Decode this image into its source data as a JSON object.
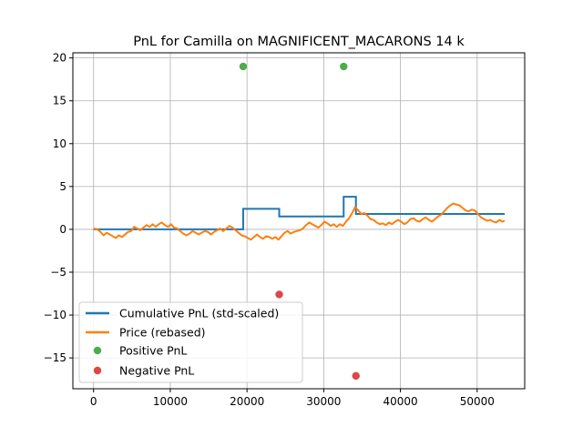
{
  "chart_data": {
    "type": "line",
    "title": "PnL for Camilla on MAGNIFICENT_MACARONS 14 k",
    "xlabel": "",
    "ylabel": "",
    "xlim": [
      -2700,
      56200
    ],
    "ylim": [
      -18.6,
      20.6
    ],
    "x_ticks": [
      0,
      10000,
      20000,
      30000,
      40000,
      50000
    ],
    "x_tick_labels": [
      "0",
      "10000",
      "20000",
      "30000",
      "40000",
      "50000"
    ],
    "y_ticks": [
      20,
      15,
      10,
      5,
      0,
      -5,
      -10,
      -15
    ],
    "y_tick_labels": [
      "20",
      "15",
      "10",
      "5",
      "0",
      "−5",
      "−10",
      "−15"
    ],
    "grid": true,
    "legend_position": "lower-left",
    "colors": {
      "cumulative": "#1f77b4",
      "price": "#ff7f0e",
      "positive": "#2ca02c",
      "negative": "#d62728",
      "grid": "#b0b0b0",
      "axes": "#000000"
    },
    "series": [
      {
        "name": "Cumulative PnL (std-scaled)",
        "kind": "step",
        "points": [
          [
            0,
            0
          ],
          [
            19500,
            0
          ],
          [
            19500,
            2.4
          ],
          [
            24200,
            2.4
          ],
          [
            24200,
            1.5
          ],
          [
            32600,
            1.5
          ],
          [
            32600,
            3.8
          ],
          [
            34200,
            3.8
          ],
          [
            34200,
            1.8
          ],
          [
            53600,
            1.8
          ]
        ]
      },
      {
        "name": "Price (rebased)",
        "kind": "line",
        "points": [
          [
            0,
            0.1
          ],
          [
            500,
            0
          ],
          [
            900,
            -0.3
          ],
          [
            1300,
            -0.7
          ],
          [
            1700,
            -0.4
          ],
          [
            2100,
            -0.6
          ],
          [
            2500,
            -0.8
          ],
          [
            2900,
            -1
          ],
          [
            3300,
            -0.7
          ],
          [
            3700,
            -0.9
          ],
          [
            4100,
            -0.6
          ],
          [
            4500,
            -0.3
          ],
          [
            4900,
            -0.2
          ],
          [
            5300,
            0.3
          ],
          [
            5700,
            0.1
          ],
          [
            6100,
            -0.1
          ],
          [
            6500,
            0.2
          ],
          [
            6900,
            0.5
          ],
          [
            7300,
            0.3
          ],
          [
            7700,
            0.6
          ],
          [
            8100,
            0.3
          ],
          [
            8500,
            0.6
          ],
          [
            8900,
            0.8
          ],
          [
            9300,
            0.5
          ],
          [
            9700,
            0.3
          ],
          [
            10100,
            0.6
          ],
          [
            10500,
            0.2
          ],
          [
            10900,
            0.1
          ],
          [
            11300,
            -0.2
          ],
          [
            11700,
            -0.5
          ],
          [
            12100,
            -0.7
          ],
          [
            12500,
            -0.5
          ],
          [
            12900,
            -0.2
          ],
          [
            13300,
            -0.4
          ],
          [
            13700,
            -0.6
          ],
          [
            14100,
            -0.4
          ],
          [
            14500,
            -0.2
          ],
          [
            14900,
            -0.3
          ],
          [
            15300,
            -0.6
          ],
          [
            15700,
            -0.3
          ],
          [
            16100,
            -0.1
          ],
          [
            16500,
            0.1
          ],
          [
            16900,
            -0.2
          ],
          [
            17300,
            0.1
          ],
          [
            17700,
            0.4
          ],
          [
            18100,
            0.2
          ],
          [
            18500,
            -0.1
          ],
          [
            18900,
            -0.4
          ],
          [
            19300,
            -0.7
          ],
          [
            19700,
            -0.8
          ],
          [
            20100,
            -1
          ],
          [
            20500,
            -1.2
          ],
          [
            20900,
            -0.9
          ],
          [
            21300,
            -0.6
          ],
          [
            21700,
            -0.9
          ],
          [
            22100,
            -1.1
          ],
          [
            22500,
            -0.8
          ],
          [
            22900,
            -0.9
          ],
          [
            23300,
            -1.1
          ],
          [
            23700,
            -0.9
          ],
          [
            24100,
            -1.2
          ],
          [
            24500,
            -0.8
          ],
          [
            24900,
            -0.4
          ],
          [
            25300,
            -0.2
          ],
          [
            25700,
            -0.5
          ],
          [
            26100,
            -0.3
          ],
          [
            26500,
            -0.2
          ],
          [
            26900,
            -0.1
          ],
          [
            27300,
            0.1
          ],
          [
            27700,
            0.5
          ],
          [
            28100,
            0.8
          ],
          [
            28500,
            0.6
          ],
          [
            28900,
            0.4
          ],
          [
            29300,
            0.2
          ],
          [
            29700,
            0.5
          ],
          [
            30100,
            0.9
          ],
          [
            30500,
            0.7
          ],
          [
            30900,
            0.4
          ],
          [
            31300,
            0.6
          ],
          [
            31700,
            0.3
          ],
          [
            32100,
            0.6
          ],
          [
            32500,
            0.4
          ],
          [
            32900,
            0.9
          ],
          [
            33300,
            1.3
          ],
          [
            33700,
            1.9
          ],
          [
            34100,
            2.6
          ],
          [
            34500,
            2.2
          ],
          [
            34900,
            1.8
          ],
          [
            35300,
            1.9
          ],
          [
            35700,
            1.6
          ],
          [
            36100,
            1.2
          ],
          [
            36500,
            1.1
          ],
          [
            36900,
            0.8
          ],
          [
            37300,
            0.6
          ],
          [
            37700,
            0.7
          ],
          [
            38100,
            0.5
          ],
          [
            38500,
            0.8
          ],
          [
            38900,
            0.6
          ],
          [
            39300,
            0.9
          ],
          [
            39700,
            1.1
          ],
          [
            40100,
            0.9
          ],
          [
            40500,
            0.6
          ],
          [
            40900,
            0.8
          ],
          [
            41300,
            1.2
          ],
          [
            41700,
            1.3
          ],
          [
            42100,
            1
          ],
          [
            42500,
            0.9
          ],
          [
            42900,
            1.2
          ],
          [
            43300,
            1.4
          ],
          [
            43700,
            1.1
          ],
          [
            44100,
            0.9
          ],
          [
            44500,
            1.2
          ],
          [
            44900,
            1.5
          ],
          [
            45300,
            1.7
          ],
          [
            45700,
            2.1
          ],
          [
            46100,
            2.5
          ],
          [
            46500,
            2.8
          ],
          [
            46900,
            3
          ],
          [
            47300,
            2.9
          ],
          [
            47700,
            2.8
          ],
          [
            48100,
            2.5
          ],
          [
            48500,
            2.2
          ],
          [
            48900,
            2.1
          ],
          [
            49300,
            2.3
          ],
          [
            49700,
            2.2
          ],
          [
            50100,
            1.8
          ],
          [
            50500,
            1.4
          ],
          [
            50900,
            1.2
          ],
          [
            51300,
            1
          ],
          [
            51700,
            1.1
          ],
          [
            52100,
            0.9
          ],
          [
            52500,
            0.8
          ],
          [
            52900,
            1.1
          ],
          [
            53300,
            0.9
          ],
          [
            53600,
            1
          ]
        ]
      },
      {
        "name": "Positive PnL",
        "kind": "scatter",
        "points": [
          [
            19500,
            19
          ],
          [
            32600,
            19
          ]
        ]
      },
      {
        "name": "Negative PnL",
        "kind": "scatter",
        "points": [
          [
            24200,
            -7.6
          ],
          [
            34200,
            -17.1
          ]
        ]
      }
    ]
  }
}
